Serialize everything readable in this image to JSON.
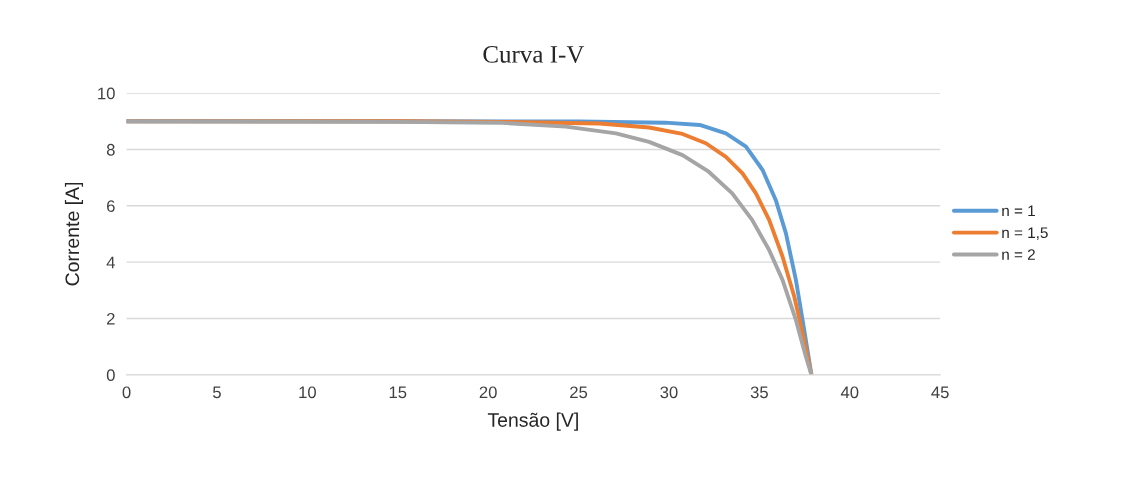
{
  "chart_data": {
    "type": "line",
    "title": "Curva I-V",
    "xlabel": "Tensão [V]",
    "ylabel": "Corrente [A]",
    "xlim": [
      0,
      45
    ],
    "xticks": [
      0,
      5,
      10,
      15,
      20,
      25,
      30,
      35,
      40,
      45
    ],
    "ylim": [
      0,
      10
    ],
    "yticks": [
      0,
      2,
      4,
      6,
      8,
      10
    ],
    "grid": "y",
    "legend": "right",
    "marker": "none",
    "line_style": "solid",
    "series": [
      {
        "name": "n = 1",
        "color": "#5b9bd5",
        "x": [
          0,
          15,
          25,
          29.8,
          31.7,
          33.15,
          34.26,
          35.18,
          35.91,
          36.47,
          37.02,
          37.48,
          37.88
        ],
        "values": [
          9.0,
          9.0,
          8.99,
          8.95,
          8.87,
          8.57,
          8.1,
          7.27,
          6.2,
          5.02,
          3.37,
          1.6,
          0
        ]
      },
      {
        "name": "n = 1,5",
        "color": "#ed7d31",
        "x": [
          0,
          15,
          20.6,
          26.15,
          28.9,
          30.75,
          32.04,
          33.15,
          34.07,
          34.81,
          35.54,
          36.28,
          36.93,
          37.39,
          37.88
        ],
        "values": [
          9.0,
          9.0,
          8.98,
          8.92,
          8.78,
          8.55,
          8.22,
          7.74,
          7.15,
          6.44,
          5.5,
          4.2,
          2.78,
          1.48,
          0
        ]
      },
      {
        "name": "n = 2",
        "color": "#a5a5a5",
        "x": [
          0,
          15,
          20.6,
          24.3,
          27.07,
          28.9,
          30.75,
          32.2,
          33.5,
          34.6,
          35.54,
          36.28,
          37.02,
          37.57,
          37.88
        ],
        "values": [
          9.0,
          8.98,
          8.95,
          8.81,
          8.57,
          8.27,
          7.8,
          7.21,
          6.44,
          5.5,
          4.43,
          3.37,
          1.95,
          0.65,
          0
        ]
      }
    ]
  }
}
